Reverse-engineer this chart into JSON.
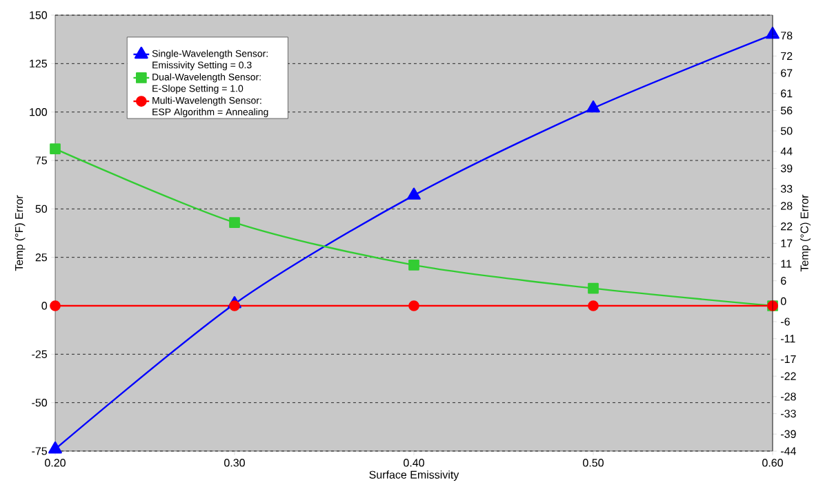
{
  "chart_data": {
    "type": "line",
    "xlabel": "Surface Emissivity",
    "ylabel": "Temp (°F) Error",
    "y2label": "Temp (°C) Error",
    "x": [
      0.2,
      0.3,
      0.4,
      0.5,
      0.6
    ],
    "series": [
      {
        "name": "Single-Wavelength Sensor: Emissivity Setting = 0.3",
        "color": "#0000ff",
        "marker": "triangle",
        "values": [
          -74,
          1,
          57,
          102,
          140
        ]
      },
      {
        "name": "Dual-Wavelength Sensor: E-Slope Setting = 1.0",
        "color": "#33cc33",
        "marker": "square",
        "values": [
          81,
          43,
          21,
          9,
          0
        ]
      },
      {
        "name": "Multi-Wavelength Sensor: ESP Algorithm = Annealing",
        "color": "#ff0000",
        "marker": "circle",
        "values": [
          0,
          0,
          0,
          0,
          0
        ]
      }
    ],
    "xlim": [
      0.2,
      0.6
    ],
    "xticks": [
      {
        "value": 0.2,
        "label": "0.20"
      },
      {
        "value": 0.3,
        "label": "0.30"
      },
      {
        "value": 0.4,
        "label": "0.40"
      },
      {
        "value": 0.5,
        "label": "0.50"
      },
      {
        "value": 0.6,
        "label": "0.60"
      }
    ],
    "ylim": [
      -75,
      150
    ],
    "yticks": [
      -75,
      -50,
      -25,
      0,
      25,
      50,
      75,
      100,
      125,
      150
    ],
    "y2lim": [
      -44,
      84
    ],
    "y2ticks": [
      -44,
      -39,
      -33,
      -28,
      -22,
      -17,
      -11,
      -6,
      0,
      6,
      11,
      17,
      22,
      28,
      33,
      39,
      44,
      50,
      56,
      61,
      67,
      72,
      78
    ],
    "grid": "y",
    "legend": "top left",
    "line_style": "solid"
  }
}
